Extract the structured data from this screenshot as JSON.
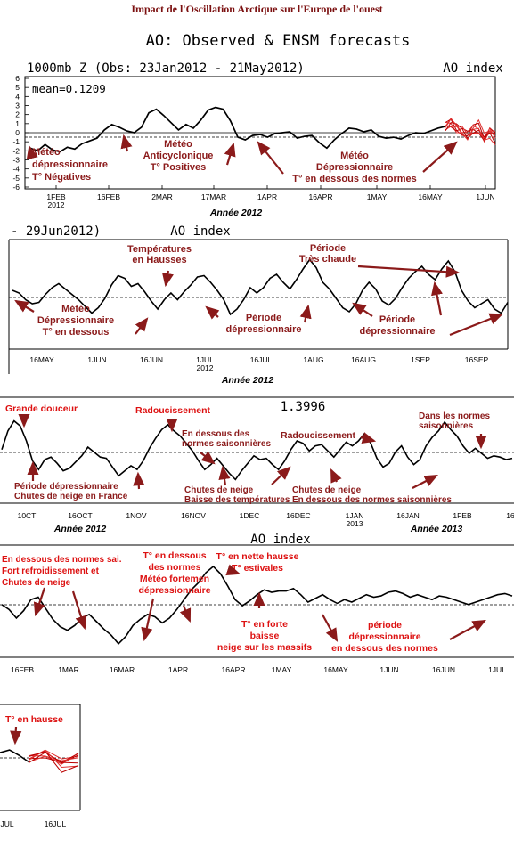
{
  "page_title": "Impact de l'Oscillation Arctique sur l'Europe de l'ouest",
  "chart_data": [
    {
      "type": "line",
      "id": "p1",
      "title": "AO: Observed & ENSM forecasts",
      "subtitle": "1000mb Z (Obs: 23Jan2012 - 21May2012)",
      "index_label": "AO index",
      "mean_label": "mean=0.1209",
      "y_ticks": [
        "6",
        "5",
        "4",
        "3",
        "2",
        "1",
        "0",
        "-1",
        "-2",
        "-3",
        "-4",
        "-5",
        "-6"
      ],
      "ylim": [
        -6,
        6
      ],
      "x_ticks": [
        "1FEB\n2012",
        "16FEB",
        "2MAR",
        "17MAR",
        "1APR",
        "16APR",
        "1MAY",
        "16MAY",
        "1JUN"
      ],
      "year_label": "Année 2012",
      "series": [
        {
          "values": [
            -1.7,
            -2.0,
            -1.3,
            -1.9,
            -2.1,
            -1.6,
            -1.8,
            -1.2,
            -0.9,
            -0.6,
            0.3,
            0.9,
            0.6,
            0.2,
            0.0,
            0.6,
            2.2,
            2.6,
            1.9,
            1.1,
            0.3,
            0.9,
            0.5,
            1.4,
            2.5,
            2.8,
            2.6,
            1.3,
            -0.5,
            -0.8,
            -0.3,
            -0.2,
            -0.5,
            -0.1,
            0.0,
            0.1,
            -0.6,
            -0.4,
            -0.3,
            -1.1,
            -1.7,
            -0.8,
            -0.1,
            0.5,
            0.4,
            0.1,
            0.3,
            -0.4,
            -0.6,
            -0.5,
            -0.7,
            -0.3,
            0.0,
            -0.1,
            0.2,
            0.5,
            0.7
          ]
        }
      ],
      "forecast": [
        0.7,
        1.1,
        0.5,
        0.2,
        -0.3,
        0.4,
        0.9,
        -0.2,
        0.6,
        0.0
      ],
      "annotations": [
        "Météo dépressionnaire T° Négatives",
        "Météo Anticyclonique T° Positives",
        "Météo Dépressionnaire T° en dessous des normes"
      ]
    },
    {
      "type": "line",
      "id": "p2",
      "subtitle": "- 29Jun2012)",
      "index_label": "AO index",
      "x_ticks": [
        "16MAY",
        "1JUN",
        "16JUN",
        "1JUL\n2012",
        "16JUL",
        "1AUG",
        "16AUG",
        "1SEP",
        "16SEP"
      ],
      "year_label": "Année 2012",
      "series": [
        {
          "values": [
            0.4,
            0.2,
            -0.3,
            -0.6,
            -0.5,
            0.1,
            0.6,
            0.9,
            0.5,
            0.1,
            -0.3,
            -0.8,
            -1.3,
            -0.9,
            -0.2,
            0.8,
            1.5,
            1.3,
            0.7,
            0.9,
            0.3,
            -0.4,
            -1.0,
            -0.3,
            0.2,
            -0.3,
            0.3,
            0.8,
            1.4,
            1.5,
            1.0,
            0.4,
            -0.3,
            -1.4,
            -1.0,
            -0.3,
            0.6,
            0.2,
            0.6,
            1.3,
            1.6,
            1.0,
            0.5,
            1.2,
            2.0,
            2.7,
            2.1,
            1.0,
            0.5,
            -0.2,
            -0.9,
            -1.2,
            -0.6,
            0.4,
            1.0,
            0.5,
            -0.4,
            -0.7,
            -0.2,
            0.6,
            1.3,
            1.8,
            2.2,
            1.6,
            1.2,
            2.0,
            2.6,
            1.8,
            0.4,
            -0.4,
            -0.9,
            -0.6,
            -0.3,
            -1.0,
            -1.3,
            -0.5
          ]
        }
      ],
      "annotations": [
        "Températures en Hausses",
        "Période Très chaude",
        "Météo Dépressionnaire T° en dessous",
        "Période dépressionnaire",
        "Période dépressionnaire"
      ]
    },
    {
      "type": "line",
      "id": "p3",
      "mean_label": "1.3996",
      "x_ticks": [
        "10CT",
        "16OCT",
        "1NOV",
        "16NOV",
        "1DEC",
        "16DEC",
        "1JAN\n2013",
        "16JAN",
        "1FEB",
        "16"
      ],
      "year_labels": [
        "Année 2012",
        "Année 2013"
      ],
      "series": [
        {
          "values": [
            0.3,
            1.8,
            2.6,
            2.2,
            1.0,
            -0.6,
            -1.3,
            -0.5,
            -0.3,
            -0.8,
            -1.4,
            -1.2,
            -0.7,
            -0.2,
            0.5,
            0.1,
            -0.3,
            -0.4,
            -1.1,
            -1.8,
            -1.4,
            -1.0,
            -1.3,
            -0.6,
            0.4,
            1.2,
            1.9,
            2.3,
            1.8,
            1.4,
            0.8,
            0.2,
            -0.6,
            -1.3,
            -0.9,
            -0.4,
            -1.0,
            -1.6,
            -2.1,
            -1.4,
            -0.8,
            -0.2,
            -0.5,
            -0.4,
            -0.9,
            -1.3,
            -0.6,
            0.3,
            1.0,
            0.8,
            0.2,
            0.6,
            0.7,
            0.2,
            -0.3,
            0.3,
            0.9,
            0.6,
            1.0,
            1.6,
            0.8,
            -0.4,
            -1.1,
            -0.8,
            0.1,
            0.6,
            -0.3,
            -0.9,
            -0.5,
            0.6,
            1.3,
            1.8,
            2.5,
            1.9,
            1.4,
            0.6,
            0.0,
            0.4,
            0.0,
            -0.4,
            -0.2,
            -0.3,
            -0.5,
            -0.4
          ]
        }
      ],
      "annotations": [
        "Grande douceur",
        "Radoucissement",
        "En dessous des normes saisonnières",
        "Radoucissement",
        "Dans les normes saisonnières",
        "Période dépressionnaire Chutes de neige en France",
        "Chutes de neige Baisse des températures",
        "Chutes de neige En dessous des normes saisonnières"
      ]
    },
    {
      "type": "line",
      "id": "p4",
      "index_label": "AO index",
      "x_ticks": [
        "16FEB",
        "1MAR",
        "16MAR",
        "1APR",
        "16APR",
        "1MAY",
        "16MAY",
        "1JUN",
        "16JUN",
        "1JUL"
      ],
      "series": [
        {
          "values": [
            -0.2,
            -0.6,
            -1.3,
            -0.7,
            0.2,
            0.4,
            -0.5,
            -1.4,
            -2.0,
            -2.3,
            -1.9,
            -1.3,
            -1.0,
            -1.6,
            -2.2,
            -2.7,
            -3.4,
            -2.8,
            -1.9,
            -1.4,
            -1.0,
            -1.2,
            -1.7,
            -1.3,
            -0.6,
            0.2,
            1.0,
            1.6,
            2.4,
            2.9,
            2.3,
            1.3,
            0.2,
            -0.3,
            0.1,
            0.6,
            1.0,
            0.8,
            0.9,
            0.9,
            1.1,
            0.6,
            0.0,
            0.3,
            0.6,
            0.2,
            -0.1,
            0.2,
            0.0,
            0.3,
            0.6,
            0.4,
            0.5,
            0.8,
            0.9,
            0.7,
            0.4,
            0.6,
            0.4,
            0.2,
            0.5,
            0.4,
            0.2,
            0.0,
            -0.2,
            0.0,
            0.2,
            0.4,
            0.6,
            0.7,
            0.5
          ]
        }
      ],
      "annotations": [
        "En dessous des normes sai. Fort refroidissement et Chutes de neige",
        "T° en dessous des normes Météo fortement dépressionnaire",
        "T° en nette hausse T° estivales",
        "T° en forte baisse neige sur les massifs",
        "période dépressionnaire en dessous des normes"
      ]
    },
    {
      "type": "line",
      "id": "p5",
      "x_ticks": [
        "JUL",
        "16JUL"
      ],
      "series": [
        {
          "values": [
            0.4,
            0.6,
            0.2,
            -0.3
          ]
        }
      ],
      "forecast": [
        -0.1,
        0.3,
        0.0,
        0.4
      ],
      "annotations": [
        "T° en hausse"
      ]
    }
  ],
  "colors": {
    "annotation": "#8b1a1a",
    "forecast": "#e03030",
    "line": "#000000"
  }
}
